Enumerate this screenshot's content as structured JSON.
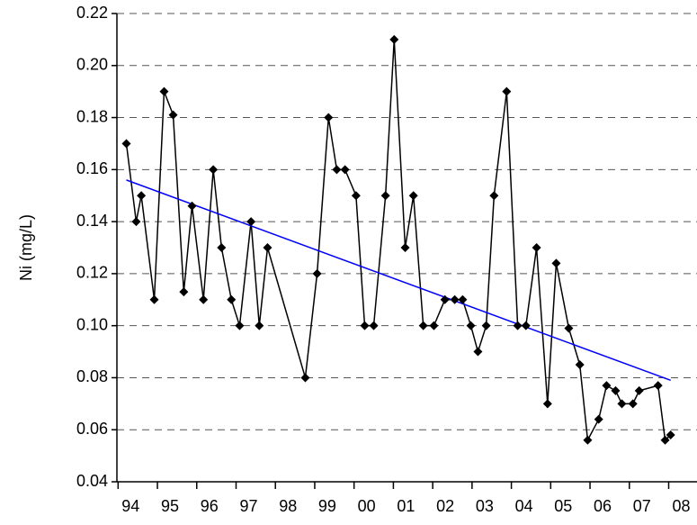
{
  "chart_data": {
    "type": "line",
    "y_label": "Ni (mg/L)",
    "x": [
      1993.89,
      1994.14,
      1994.27,
      1994.6,
      1994.85,
      1995.08,
      1995.35,
      1995.56,
      1995.85,
      1996.1,
      1996.31,
      1996.56,
      1996.77,
      1997.06,
      1997.27,
      1997.48,
      1998.44,
      1998.74,
      1999.03,
      1999.24,
      1999.45,
      1999.73,
      1999.95,
      2000.18,
      2000.48,
      2000.7,
      2000.98,
      2001.19,
      2001.44,
      2001.71,
      2001.99,
      2002.24,
      2002.44,
      2002.65,
      2002.83,
      2003.04,
      2003.24,
      2003.56,
      2003.84,
      2004.05,
      2004.32,
      2004.6,
      2004.82,
      2005.14,
      2005.42,
      2005.62,
      2005.9,
      2006.1,
      2006.33,
      2006.49,
      2006.77,
      2006.93,
      2007.41,
      2007.59,
      2007.73
    ],
    "values": [
      0.17,
      0.14,
      0.15,
      0.11,
      0.19,
      0.181,
      0.113,
      0.146,
      0.11,
      0.16,
      0.13,
      0.11,
      0.1,
      0.14,
      0.1,
      0.13,
      0.08,
      0.12,
      0.18,
      0.16,
      0.16,
      0.15,
      0.1,
      0.1,
      0.15,
      0.21,
      0.13,
      0.15,
      0.1,
      0.1,
      0.11,
      0.11,
      0.11,
      0.1,
      0.09,
      0.1,
      0.15,
      0.19,
      0.1,
      0.1,
      0.13,
      0.07,
      0.124,
      0.099,
      0.085,
      0.056,
      0.064,
      0.077,
      0.075,
      0.07,
      0.07,
      0.075,
      0.077,
      0.056,
      0.058
    ],
    "color": "#000000",
    "trendline": {
      "x": [
        1993.89,
        2007.73
      ],
      "values": [
        0.156,
        0.079
      ],
      "color": "#0000ff"
    },
    "xlim": [
      1993.65,
      2008.4
    ],
    "xticks": [
      {
        "value": 1994,
        "label": "94"
      },
      {
        "value": 1995,
        "label": "95"
      },
      {
        "value": 1996,
        "label": "96"
      },
      {
        "value": 1997,
        "label": "97"
      },
      {
        "value": 1998,
        "label": "98"
      },
      {
        "value": 1999,
        "label": "99"
      },
      {
        "value": 2000,
        "label": "00"
      },
      {
        "value": 2001,
        "label": "01"
      },
      {
        "value": 2002,
        "label": "02"
      },
      {
        "value": 2003,
        "label": "03"
      },
      {
        "value": 2004,
        "label": "04"
      },
      {
        "value": 2005,
        "label": "05"
      },
      {
        "value": 2006,
        "label": "06"
      },
      {
        "value": 2007,
        "label": "07"
      },
      {
        "value": 2008,
        "label": "08"
      }
    ],
    "ylim": [
      0.04,
      0.22
    ],
    "yticks": [
      {
        "value": 0.04,
        "label": "0.04"
      },
      {
        "value": 0.06,
        "label": "0.06"
      },
      {
        "value": 0.08,
        "label": "0.08"
      },
      {
        "value": 0.1,
        "label": "0.10"
      },
      {
        "value": 0.12,
        "label": "0.12"
      },
      {
        "value": 0.14,
        "label": "0.14"
      },
      {
        "value": 0.16,
        "label": "0.16"
      },
      {
        "value": 0.18,
        "label": "0.18"
      },
      {
        "value": 0.2,
        "label": "0.20"
      },
      {
        "value": 0.22,
        "label": "0.22"
      }
    ],
    "grid": true
  }
}
